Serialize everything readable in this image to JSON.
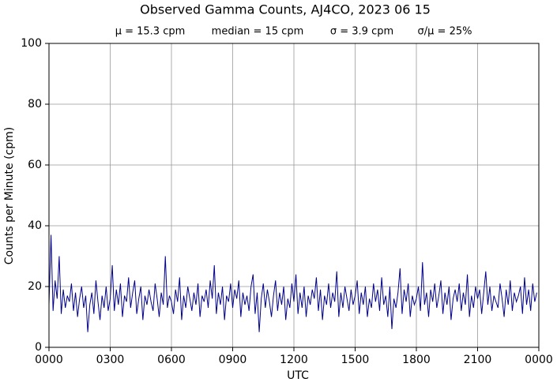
{
  "chart_data": {
    "type": "line",
    "title": "Observed Gamma Counts, AJ4CO, 2023 06 15",
    "stats": [
      "μ = 15.3 cpm",
      "median = 15 cpm",
      "σ = 3.9 cpm",
      "σ/μ = 25%"
    ],
    "xlabel": "UTC",
    "ylabel": "Counts per Minute (cpm)",
    "color": "#00008b",
    "grid": true,
    "xlim": [
      0,
      24
    ],
    "ylim": [
      0,
      100
    ],
    "xticks": [
      {
        "value": 0,
        "label": "0000"
      },
      {
        "value": 3,
        "label": "0300"
      },
      {
        "value": 6,
        "label": "0600"
      },
      {
        "value": 9,
        "label": "0900"
      },
      {
        "value": 12,
        "label": "1200"
      },
      {
        "value": 15,
        "label": "1500"
      },
      {
        "value": 18,
        "label": "1800"
      },
      {
        "value": 21,
        "label": "2100"
      },
      {
        "value": 24,
        "label": "0000"
      }
    ],
    "yticks": [
      0,
      20,
      40,
      60,
      80,
      100
    ],
    "x": [
      0,
      0.1,
      0.2,
      0.3,
      0.4,
      0.5,
      0.6,
      0.7,
      0.8,
      0.9,
      1,
      1.1,
      1.2,
      1.3,
      1.4,
      1.5,
      1.6,
      1.7,
      1.8,
      1.9,
      2,
      2.1,
      2.2,
      2.3,
      2.4,
      2.5,
      2.6,
      2.7,
      2.8,
      2.9,
      3,
      3.1,
      3.2,
      3.3,
      3.4,
      3.5,
      3.6,
      3.7,
      3.8,
      3.9,
      4,
      4.1,
      4.2,
      4.3,
      4.4,
      4.5,
      4.6,
      4.7,
      4.8,
      4.9,
      5,
      5.1,
      5.2,
      5.3,
      5.4,
      5.5,
      5.6,
      5.7,
      5.8,
      5.9,
      6,
      6.1,
      6.2,
      6.3,
      6.4,
      6.5,
      6.6,
      6.7,
      6.8,
      6.9,
      7,
      7.1,
      7.2,
      7.3,
      7.4,
      7.5,
      7.6,
      7.7,
      7.8,
      7.9,
      8,
      8.1,
      8.2,
      8.3,
      8.4,
      8.5,
      8.6,
      8.7,
      8.8,
      8.9,
      9,
      9.1,
      9.2,
      9.3,
      9.4,
      9.5,
      9.6,
      9.7,
      9.8,
      9.9,
      10,
      10.1,
      10.2,
      10.3,
      10.4,
      10.5,
      10.6,
      10.7,
      10.8,
      10.9,
      11,
      11.1,
      11.2,
      11.3,
      11.4,
      11.5,
      11.6,
      11.7,
      11.8,
      11.9,
      12,
      12.1,
      12.2,
      12.3,
      12.4,
      12.5,
      12.6,
      12.7,
      12.8,
      12.9,
      13,
      13.1,
      13.2,
      13.3,
      13.4,
      13.5,
      13.6,
      13.7,
      13.8,
      13.9,
      14,
      14.1,
      14.2,
      14.3,
      14.4,
      14.5,
      14.6,
      14.7,
      14.8,
      14.9,
      15,
      15.1,
      15.2,
      15.3,
      15.4,
      15.5,
      15.6,
      15.7,
      15.8,
      15.9,
      16,
      16.1,
      16.2,
      16.3,
      16.4,
      16.5,
      16.6,
      16.7,
      16.8,
      16.9,
      17,
      17.1,
      17.2,
      17.3,
      17.4,
      17.5,
      17.6,
      17.7,
      17.8,
      17.9,
      18,
      18.1,
      18.2,
      18.3,
      18.4,
      18.5,
      18.6,
      18.7,
      18.8,
      18.9,
      19,
      19.1,
      19.2,
      19.3,
      19.4,
      19.5,
      19.6,
      19.7,
      19.8,
      19.9,
      20,
      20.1,
      20.2,
      20.3,
      20.4,
      20.5,
      20.6,
      20.7,
      20.8,
      20.9,
      21,
      21.1,
      21.2,
      21.3,
      21.4,
      21.5,
      21.6,
      21.7,
      21.8,
      21.9,
      22,
      22.1,
      22.2,
      22.3,
      22.4,
      22.5,
      22.6,
      22.7,
      22.8,
      22.9,
      23,
      23.1,
      23.2,
      23.3,
      23.4,
      23.5,
      23.6,
      23.7,
      23.8,
      23.9
    ],
    "values": [
      14,
      37,
      12,
      22,
      16,
      30,
      11,
      19,
      13,
      17,
      15,
      21,
      12,
      18,
      10,
      16,
      20,
      13,
      17,
      5,
      14,
      18,
      11,
      22,
      15,
      9,
      17,
      13,
      20,
      12,
      16,
      27,
      12,
      19,
      14,
      21,
      10,
      17,
      15,
      23,
      13,
      18,
      22,
      11,
      16,
      20,
      9,
      17,
      14,
      19,
      15,
      12,
      21,
      16,
      10,
      18,
      14,
      30,
      13,
      17,
      15,
      11,
      19,
      15,
      23,
      9,
      17,
      13,
      20,
      16,
      12,
      18,
      14,
      21,
      10,
      17,
      15,
      19,
      13,
      22,
      16,
      27,
      11,
      18,
      14,
      20,
      9,
      17,
      15,
      21,
      13,
      19,
      16,
      22,
      10,
      18,
      14,
      17,
      12,
      20,
      24,
      11,
      18,
      5,
      16,
      21,
      13,
      19,
      15,
      10,
      17,
      22,
      12,
      18,
      14,
      20,
      9,
      16,
      13,
      21,
      15,
      24,
      11,
      18,
      13,
      20,
      10,
      17,
      14,
      19,
      16,
      23,
      12,
      19,
      9,
      17,
      14,
      21,
      13,
      18,
      15,
      25,
      10,
      18,
      13,
      20,
      16,
      12,
      19,
      14,
      17,
      22,
      11,
      18,
      14,
      20,
      10,
      16,
      13,
      21,
      15,
      19,
      12,
      23,
      14,
      17,
      10,
      20,
      6,
      16,
      13,
      18,
      26,
      11,
      19,
      15,
      21,
      10,
      17,
      14,
      16,
      20,
      12,
      28,
      14,
      18,
      10,
      19,
      15,
      21,
      13,
      17,
      22,
      11,
      18,
      14,
      20,
      9,
      16,
      19,
      15,
      21,
      12,
      18,
      14,
      24,
      10,
      17,
      13,
      20,
      16,
      19,
      11,
      18,
      25,
      14,
      20,
      12,
      17,
      15,
      13,
      21,
      16,
      10,
      19,
      14,
      22,
      12,
      18,
      15,
      17,
      20,
      11,
      23,
      14,
      19,
      12,
      21,
      15,
      18
    ]
  }
}
